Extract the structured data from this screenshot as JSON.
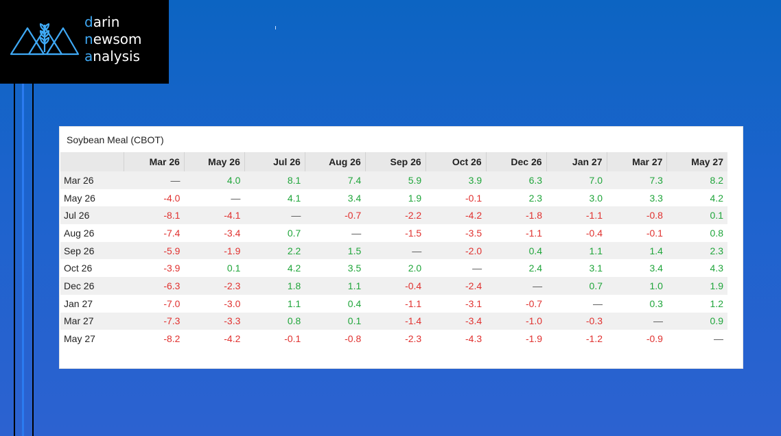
{
  "brand": {
    "line1": "darin",
    "line2": "newsom",
    "line3": "analysis",
    "logo_icon": "wheat-mountains-icon",
    "accent_color": "#3fa9f5"
  },
  "table": {
    "title": "Soybean Meal (CBOT)",
    "columns": [
      "Mar 26",
      "May 26",
      "Jul 26",
      "Aug 26",
      "Sep 26",
      "Oct 26",
      "Dec 26",
      "Jan 27",
      "Mar 27",
      "May 27"
    ],
    "rows": [
      {
        "label": "Mar 26",
        "cells": [
          "—",
          "4.0",
          "8.1",
          "7.4",
          "5.9",
          "3.9",
          "6.3",
          "7.0",
          "7.3",
          "8.2"
        ]
      },
      {
        "label": "May 26",
        "cells": [
          "-4.0",
          "—",
          "4.1",
          "3.4",
          "1.9",
          "-0.1",
          "2.3",
          "3.0",
          "3.3",
          "4.2"
        ]
      },
      {
        "label": "Jul 26",
        "cells": [
          "-8.1",
          "-4.1",
          "—",
          "-0.7",
          "-2.2",
          "-4.2",
          "-1.8",
          "-1.1",
          "-0.8",
          "0.1"
        ]
      },
      {
        "label": "Aug 26",
        "cells": [
          "-7.4",
          "-3.4",
          "0.7",
          "—",
          "-1.5",
          "-3.5",
          "-1.1",
          "-0.4",
          "-0.1",
          "0.8"
        ]
      },
      {
        "label": "Sep 26",
        "cells": [
          "-5.9",
          "-1.9",
          "2.2",
          "1.5",
          "—",
          "-2.0",
          "0.4",
          "1.1",
          "1.4",
          "2.3"
        ]
      },
      {
        "label": "Oct 26",
        "cells": [
          "-3.9",
          "0.1",
          "4.2",
          "3.5",
          "2.0",
          "—",
          "2.4",
          "3.1",
          "3.4",
          "4.3"
        ]
      },
      {
        "label": "Dec 26",
        "cells": [
          "-6.3",
          "-2.3",
          "1.8",
          "1.1",
          "-0.4",
          "-2.4",
          "—",
          "0.7",
          "1.0",
          "1.9"
        ]
      },
      {
        "label": "Jan 27",
        "cells": [
          "-7.0",
          "-3.0",
          "1.1",
          "0.4",
          "-1.1",
          "-3.1",
          "-0.7",
          "—",
          "0.3",
          "1.2"
        ]
      },
      {
        "label": "Mar 27",
        "cells": [
          "-7.3",
          "-3.3",
          "0.8",
          "0.1",
          "-1.4",
          "-3.4",
          "-1.0",
          "-0.3",
          "—",
          "0.9"
        ]
      },
      {
        "label": "May 27",
        "cells": [
          "-8.2",
          "-4.2",
          "-0.1",
          "-0.8",
          "-2.3",
          "-4.3",
          "-1.9",
          "-1.2",
          "-0.9",
          "—"
        ]
      }
    ],
    "positive_color": "#1fa53a",
    "negative_color": "#e0312f"
  }
}
